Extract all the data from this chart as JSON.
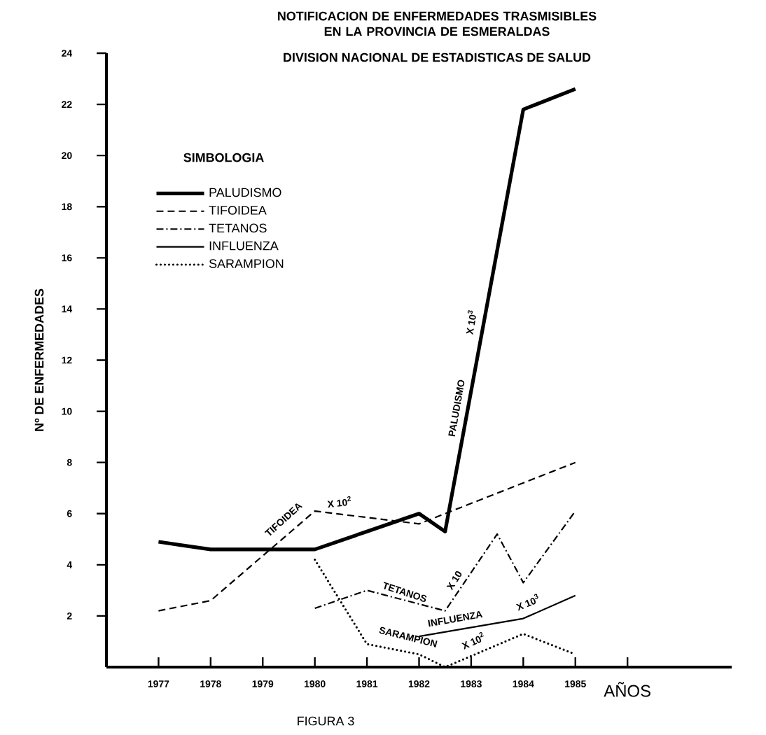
{
  "chart_data": {
    "type": "line",
    "title": "NOTIFICACION DE ENFERMEDADES TRASMISIBLES EN LA PROVINCIA DE ESMERALDAS",
    "subtitle": "DIVISION NACIONAL DE ESTADISTICAS DE SALUD",
    "xlabel": "AÑOS",
    "ylabel": "Nº DE ENFERMEDADES",
    "legend_title": "SIMBOLOGIA",
    "legend": "top left",
    "xlim": [
      1976,
      1988
    ],
    "ylim": [
      0,
      24
    ],
    "xticks": [
      1977,
      1978,
      1979,
      1980,
      1981,
      1982,
      1983,
      1984,
      1985,
      {
        "value": 1986,
        "label": null
      }
    ],
    "yticks": [
      2,
      4,
      6,
      8,
      10,
      12,
      14,
      16,
      18,
      20,
      22,
      24
    ],
    "grid": false,
    "marker": "none",
    "series": [
      {
        "name": "PALUDISMO",
        "color": "#000000",
        "line_style": "solid",
        "x": [
          1977,
          1978,
          1980,
          1982,
          1982.5,
          1984,
          1985
        ],
        "values": [
          4.9,
          4.6,
          4.6,
          6.0,
          5.3,
          21.8,
          22.6
        ]
      },
      {
        "name": "TIFOIDEA",
        "color": "#000000",
        "line_style": "dashed",
        "x": [
          1977,
          1978,
          1980,
          1982,
          1985
        ],
        "values": [
          2.2,
          2.6,
          6.1,
          5.6,
          8.0
        ]
      },
      {
        "name": "TETANOS",
        "color": "#000000",
        "line_style": "dashdot",
        "x": [
          1980,
          1981,
          1982.5,
          1983.5,
          1984,
          1985
        ],
        "values": [
          2.3,
          3.0,
          2.2,
          5.2,
          3.3,
          6.1
        ]
      },
      {
        "name": "INFLUENZA",
        "color": "#000000",
        "line_style": "solid",
        "x": [
          1982,
          1984,
          1985
        ],
        "values": [
          1.2,
          1.9,
          2.8
        ]
      },
      {
        "name": "SARAMPION",
        "color": "#000000",
        "line_style": "dotted",
        "x": [
          1980,
          1981,
          1982,
          1982.5,
          1984,
          1985
        ],
        "values": [
          4.2,
          0.9,
          0.5,
          0.0,
          1.3,
          0.5
        ]
      }
    ],
    "annotations": [
      "TIFOIDEA",
      "X 10$^{2}$",
      "PALUDISMO",
      "X 10$^{3}$",
      "TETANOS",
      "X 10",
      "INFLUENZA",
      "X 10$^{3}$",
      "SARAMPION",
      "X 10$^{2}$",
      "FIGURA 3"
    ]
  }
}
